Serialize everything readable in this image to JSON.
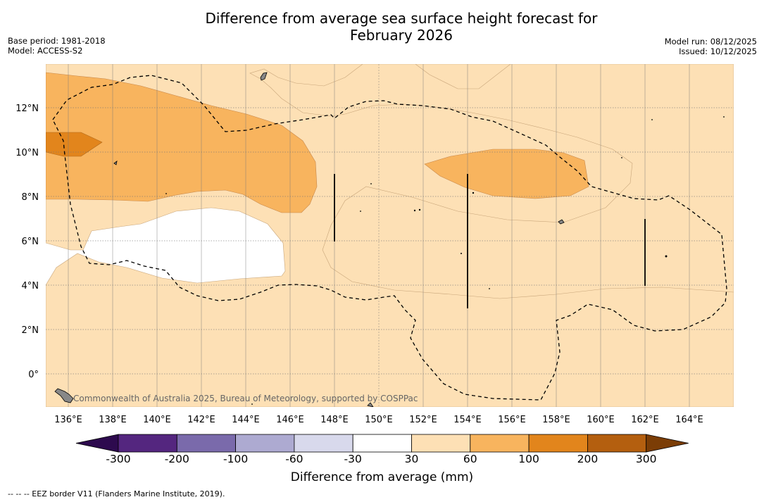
{
  "title": {
    "line1": "Difference from average sea surface height forecast for",
    "line2": "February 2026"
  },
  "meta": {
    "base_period": "Base period: 1981-2018",
    "model": "Model: ACCESS-S2",
    "model_run": "Model run: 08/12/2025",
    "issued": "Issued: 10/12/2025"
  },
  "map": {
    "lon_ticks": [
      "136°E",
      "138°E",
      "140°E",
      "142°E",
      "144°E",
      "146°E",
      "148°E",
      "150°E",
      "152°E",
      "154°E",
      "156°E",
      "158°E",
      "160°E",
      "162°E",
      "164°E"
    ],
    "lat_ticks": [
      "12°N",
      "10°N",
      "8°N",
      "6°N",
      "4°N",
      "2°N",
      "0°"
    ],
    "attribution": "Commonwealth of Australia 2025, Bureau of Meteorology, supported by COSPPac",
    "colors": {
      "c30_60": "#fde0b5",
      "c60_100": "#f8b45e",
      "c100_200": "#e2851c",
      "land": "#888888"
    }
  },
  "colorbar": {
    "labels": [
      "-300",
      "-200",
      "-100",
      "-60",
      "-30",
      "30",
      "60",
      "100",
      "200",
      "300"
    ],
    "colors": [
      "#2d0a4e",
      "#54267f",
      "#7a6aab",
      "#adaad1",
      "#d8d9ec",
      "#ffffff",
      "#fde0b5",
      "#f8b45e",
      "#e2851c",
      "#b45f0f",
      "#7b3d06"
    ],
    "title": "Difference from average (mm)"
  },
  "footnote": "-- -- -- EEZ border V11 (Flanders Marine Institute, 2019)."
}
